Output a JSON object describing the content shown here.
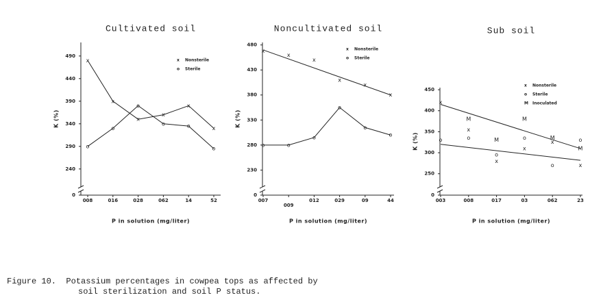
{
  "chart_data": [
    {
      "type": "line",
      "title": "Cultivated soil",
      "x_label": "P in solution (mg/liter)",
      "y_label": "K (%)",
      "categories": [
        "008",
        "016",
        "028",
        "062",
        "14",
        "52"
      ],
      "ylim": [
        2.2,
        5.2
      ],
      "yticks": [
        0,
        {
          "value": 2.4,
          "label": "240"
        },
        {
          "value": 2.9,
          "label": "290"
        },
        {
          "value": 3.4,
          "label": "340"
        },
        {
          "value": 3.9,
          "label": "390"
        },
        {
          "value": 4.4,
          "label": "440"
        },
        {
          "value": 4.9,
          "label": "490"
        }
      ],
      "series": [
        {
          "name": "Nonsterile",
          "marker": "x",
          "color": "#222222",
          "line": true,
          "values": [
            4.8,
            3.9,
            3.5,
            3.6,
            3.8,
            3.3
          ]
        },
        {
          "name": "Sterile",
          "marker": "o",
          "color": "#222222",
          "line": true,
          "values": [
            2.9,
            3.3,
            3.8,
            3.4,
            3.35,
            2.85
          ]
        }
      ]
    },
    {
      "type": "line",
      "title": "Noncultivated soil",
      "x_label": "P in solution (mg/liter)",
      "y_label": "K (%)",
      "categories": [
        "007",
        "009",
        "012",
        "029",
        "09",
        "44"
      ],
      "ylim": [
        2.1,
        4.85
      ],
      "yticks": [
        0,
        {
          "value": 2.3,
          "label": "230"
        },
        {
          "value": 2.8,
          "label": "280"
        },
        {
          "value": 3.3,
          "label": "330"
        },
        {
          "value": 3.8,
          "label": "380"
        },
        {
          "value": 4.3,
          "label": "430"
        },
        {
          "value": 4.8,
          "label": "480"
        }
      ],
      "series": [
        {
          "name": "Nonsterile",
          "marker": "x",
          "color": "#222222",
          "line": false,
          "fit": [
            4.7,
            3.8
          ],
          "values": [
            4.68,
            4.6,
            4.5,
            4.1,
            4.0,
            3.8
          ]
        },
        {
          "name": "Sterile",
          "marker": "o",
          "color": "#222222",
          "line": true,
          "values": [
            2.8,
            2.8,
            2.95,
            3.55,
            3.15,
            3.0
          ]
        }
      ]
    },
    {
      "type": "scatter",
      "title": "Sub soil",
      "x_label": "P in solution (mg/liter)",
      "y_label": "K (%)",
      "categories": [
        "003",
        "008",
        "017",
        "03",
        "062",
        "23"
      ],
      "ylim": [
        2.3,
        4.55
      ],
      "yticks": [
        0,
        {
          "value": 2.5,
          "label": "250"
        },
        {
          "value": 3.0,
          "label": "300"
        },
        {
          "value": 3.5,
          "label": "350"
        },
        {
          "value": 4.0,
          "label": "400"
        },
        {
          "value": 4.5,
          "label": "450"
        }
      ],
      "series": [
        {
          "name": "Nonsterile",
          "marker": "x",
          "color": "#222222",
          "line": false,
          "fit": [
            4.15,
            3.1
          ],
          "values": [
            4.2,
            3.55,
            2.8,
            3.1,
            3.25,
            2.7
          ]
        },
        {
          "name": "Sterile",
          "marker": "o",
          "color": "#222222",
          "line": false,
          "fit": [
            3.2,
            2.82
          ],
          "values": [
            3.3,
            3.35,
            2.95,
            3.35,
            2.7,
            3.3
          ]
        },
        {
          "name": "Inoculated",
          "marker": "M",
          "color": "#222222",
          "line": false,
          "values": [
            null,
            3.8,
            3.3,
            3.8,
            3.35,
            3.1
          ]
        }
      ]
    }
  ],
  "caption": [
    "Figure 10.  Potassium percentages in cowpea tops as affected by",
    "soil sterilization and soil P status."
  ]
}
